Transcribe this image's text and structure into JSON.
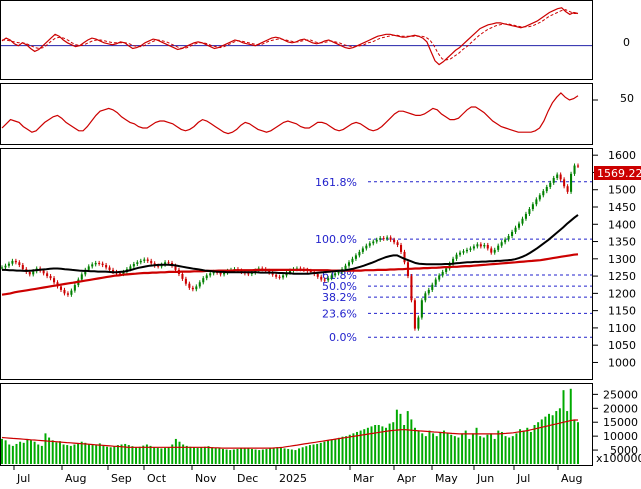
{
  "colors": {
    "panel_border": "#000000",
    "grid": "#c0c0c0",
    "up_candle": "#008000",
    "down_candle": "#cc0000",
    "ma_long": "#cc0000",
    "ma_mid": "#000000",
    "fib": "#2222cc",
    "price_badge_bg": "#cc0000",
    "price_badge_text": "#ffffff",
    "volume_bar": "#00aa00",
    "volume_ma": "#cc0000",
    "oscillator": "#cc0000"
  },
  "chart_data": {
    "type": "candlestick",
    "months": [
      "Jul",
      "Aug",
      "Sep",
      "Oct",
      "Nov",
      "Dec",
      "2025",
      "Mar",
      "Apr",
      "May",
      "Jun",
      "Jul",
      "Aug"
    ],
    "price_axis": {
      "ticks": [
        1000,
        1050,
        1100,
        1150,
        1200,
        1250,
        1300,
        1350,
        1400,
        1450,
        1500,
        1550,
        1600
      ],
      "tick_labels": [
        "1000",
        "1050",
        "1100",
        "1150",
        "1200",
        "1250",
        "1300",
        "1350",
        "1400",
        "1450",
        "1500",
        "1550",
        "1600"
      ],
      "ylim": [
        955,
        1615
      ]
    },
    "last_price_label": "1569.22",
    "close": [
      1275,
      1280,
      1286,
      1294,
      1290,
      1282,
      1270,
      1262,
      1255,
      1264,
      1272,
      1266,
      1258,
      1250,
      1244,
      1232,
      1220,
      1210,
      1200,
      1196,
      1208,
      1224,
      1240,
      1255,
      1268,
      1278,
      1284,
      1288,
      1286,
      1282,
      1275,
      1268,
      1262,
      1258,
      1256,
      1262,
      1270,
      1278,
      1285,
      1290,
      1294,
      1298,
      1294,
      1287,
      1280,
      1278,
      1283,
      1290,
      1288,
      1280,
      1268,
      1256,
      1242,
      1228,
      1216,
      1212,
      1220,
      1232,
      1244,
      1252,
      1258,
      1262,
      1260,
      1255,
      1260,
      1265,
      1268,
      1270,
      1266,
      1262,
      1258,
      1256,
      1260,
      1266,
      1272,
      1270,
      1265,
      1260,
      1254,
      1248,
      1246,
      1252,
      1260,
      1266,
      1270,
      1272,
      1270,
      1268,
      1265,
      1262,
      1256,
      1248,
      1240,
      1238,
      1244,
      1252,
      1258,
      1262,
      1270,
      1280,
      1290,
      1300,
      1310,
      1320,
      1330,
      1338,
      1345,
      1350,
      1355,
      1360,
      1358,
      1362,
      1355,
      1348,
      1340,
      1320,
      1290,
      1250,
      1180,
      1098,
      1130,
      1180,
      1200,
      1210,
      1225,
      1240,
      1252,
      1262,
      1272,
      1286,
      1300,
      1312,
      1318,
      1322,
      1326,
      1330,
      1336,
      1342,
      1336,
      1340,
      1330,
      1318,
      1326,
      1338,
      1348,
      1356,
      1366,
      1378,
      1390,
      1402,
      1416,
      1430,
      1444,
      1458,
      1472,
      1484,
      1496,
      1508,
      1520,
      1534,
      1544,
      1530,
      1510,
      1494,
      1546,
      1570,
      1569
    ],
    "ma_mid": [
      1268,
      1268,
      1267,
      1267,
      1266,
      1266,
      1265,
      1265,
      1266,
      1267,
      1268,
      1269,
      1270,
      1271,
      1272,
      1272,
      1271,
      1270,
      1269,
      1268,
      1267,
      1266,
      1265,
      1265,
      1264,
      1264,
      1263,
      1263,
      1263,
      1262,
      1261,
      1261,
      1262,
      1263,
      1265,
      1268,
      1271,
      1274,
      1276,
      1278,
      1280,
      1281,
      1282,
      1283,
      1283,
      1283,
      1282,
      1281,
      1279,
      1277,
      1275,
      1273,
      1271,
      1270,
      1268,
      1266,
      1265,
      1264,
      1263,
      1262,
      1262,
      1261,
      1261,
      1261,
      1261,
      1261,
      1261,
      1261,
      1261,
      1261,
      1260,
      1260,
      1260,
      1260,
      1260,
      1259,
      1259,
      1258,
      1258,
      1257,
      1257,
      1257,
      1257,
      1257,
      1258,
      1259,
      1260,
      1261,
      1262,
      1263,
      1264,
      1265,
      1266,
      1267,
      1269,
      1271,
      1274,
      1277,
      1280,
      1284,
      1288,
      1292,
      1297,
      1301,
      1305,
      1308,
      1310,
      1310,
      1305,
      1300,
      1296,
      1292,
      1288,
      1286,
      1285,
      1284,
      1284,
      1284,
      1284,
      1284,
      1285,
      1285,
      1286,
      1287,
      1288,
      1289,
      1290,
      1290,
      1291,
      1291,
      1292,
      1292,
      1293,
      1293,
      1294,
      1294,
      1295,
      1296,
      1297,
      1299,
      1302,
      1306,
      1311,
      1317,
      1324,
      1331,
      1339,
      1347,
      1355,
      1364,
      1373,
      1382,
      1391,
      1401,
      1410,
      1419,
      1427
    ],
    "ma_long": [
      1196,
      1198,
      1200,
      1203,
      1205,
      1207,
      1209,
      1211,
      1213,
      1215,
      1217,
      1219,
      1221,
      1223,
      1225,
      1227,
      1229,
      1231,
      1233,
      1235,
      1237,
      1239,
      1241,
      1243,
      1245,
      1247,
      1249,
      1251,
      1252,
      1254,
      1255,
      1256,
      1257,
      1258,
      1259,
      1259,
      1260,
      1260,
      1261,
      1261,
      1262,
      1262,
      1262,
      1263,
      1263,
      1263,
      1264,
      1264,
      1264,
      1265,
      1265,
      1265,
      1266,
      1266,
      1266,
      1266,
      1267,
      1267,
      1267,
      1267,
      1267,
      1268,
      1268,
      1268,
      1268,
      1268,
      1268,
      1268,
      1268,
      1268,
      1268,
      1268,
      1268,
      1268,
      1267,
      1267,
      1267,
      1267,
      1267,
      1266,
      1266,
      1266,
      1266,
      1266,
      1266,
      1266,
      1266,
      1267,
      1267,
      1267,
      1268,
      1268,
      1268,
      1269,
      1269,
      1270,
      1270,
      1271,
      1271,
      1272,
      1272,
      1273,
      1273,
      1274,
      1274,
      1275,
      1276,
      1276,
      1277,
      1277,
      1278,
      1279,
      1279,
      1280,
      1281,
      1282,
      1283,
      1284,
      1285,
      1286,
      1287,
      1288,
      1289,
      1290,
      1291,
      1292,
      1293,
      1294,
      1295,
      1296,
      1298,
      1300,
      1302,
      1304,
      1306,
      1308,
      1310,
      1312,
      1313
    ],
    "fibonacci": {
      "levels": [
        {
          "label": "161.8%",
          "value": 1523
        },
        {
          "label": "100.0%",
          "value": 1357
        },
        {
          "label": "61.8%",
          "value": 1253
        },
        {
          "label": "50.0%",
          "value": 1221
        },
        {
          "label": "38.2%",
          "value": 1189
        },
        {
          "label": "23.6%",
          "value": 1142
        },
        {
          "label": "0.0%",
          "value": 1073
        }
      ]
    },
    "volume": {
      "unit_label": "x100000",
      "ticks": [
        5000,
        10000,
        15000,
        20000,
        25000
      ],
      "tick_labels": [
        "5000",
        "10000",
        "15000",
        "20000",
        "25000"
      ],
      "ylim": [
        0,
        28000
      ],
      "bars": [
        9000,
        8500,
        7000,
        6500,
        7200,
        8000,
        7600,
        9000,
        8800,
        8000,
        7000,
        6500,
        11000,
        9500,
        8500,
        7800,
        8200,
        7000,
        6800,
        6500,
        7000,
        7500,
        8000,
        7600,
        7200,
        6800,
        7000,
        7400,
        6600,
        6200,
        6000,
        6400,
        6800,
        7000,
        7200,
        6800,
        6400,
        6000,
        6200,
        6600,
        7000,
        6500,
        6000,
        5800,
        5600,
        5800,
        6000,
        7000,
        9000,
        8000,
        7000,
        6500,
        6200,
        6000,
        5800,
        6000,
        6200,
        6400,
        6000,
        5800,
        5600,
        5400,
        5200,
        5000,
        5200,
        5400,
        5600,
        5800,
        5600,
        5400,
        5200,
        5000,
        5200,
        5400,
        5600,
        5800,
        6000,
        5800,
        5600,
        5400,
        5200,
        5000,
        5600,
        6000,
        6400,
        6800,
        7000,
        7200,
        7600,
        8000,
        8400,
        8800,
        9000,
        9400,
        9800,
        10000,
        10500,
        11000,
        11500,
        12000,
        12500,
        13000,
        13500,
        14000,
        14000,
        13500,
        13000,
        14500,
        15000,
        19500,
        18000,
        14000,
        19000,
        16000,
        13000,
        12000,
        11000,
        10000,
        12000,
        11000,
        10000,
        11500,
        12000,
        11000,
        10500,
        10000,
        9500,
        11000,
        12000,
        9000,
        11000,
        13000,
        10000,
        9500,
        10500,
        11000,
        9000,
        12000,
        11500,
        10000,
        9500,
        10000,
        11000,
        12500,
        12000,
        13000,
        11500,
        14000,
        15000,
        16000,
        17000,
        18000,
        17500,
        19000,
        20000,
        26500,
        19000,
        27000,
        16000,
        15000
      ],
      "ma": [
        9500,
        9400,
        9300,
        9200,
        9100,
        9000,
        8900,
        8800,
        8700,
        8600,
        8500,
        8400,
        8300,
        8200,
        8100,
        8000,
        7900,
        7800,
        7700,
        7600,
        7500,
        7400,
        7300,
        7200,
        7100,
        7000,
        6900,
        6800,
        6700,
        6600,
        6500,
        6400,
        6300,
        6200,
        6100,
        6000,
        6000,
        6000,
        6000,
        6000,
        6000,
        6000,
        6000,
        6000,
        6000,
        6000,
        6000,
        6000,
        6000,
        6000,
        6000,
        6000,
        6000,
        6000,
        6000,
        6000,
        6000,
        6000,
        5900,
        5800,
        5800,
        5700,
        5700,
        5700,
        5700,
        5700,
        5700,
        5700,
        5700,
        5700,
        5700,
        5700,
        5700,
        5700,
        5700,
        5700,
        5800,
        5900,
        6000,
        6200,
        6400,
        6600,
        6800,
        7000,
        7200,
        7400,
        7600,
        7800,
        8000,
        8200,
        8400,
        8600,
        8800,
        9000,
        9200,
        9400,
        9600,
        9800,
        10000,
        10200,
        10400,
        10600,
        10800,
        11000,
        11200,
        11400,
        11600,
        11800,
        12000,
        12100,
        12200,
        12300,
        12300,
        12200,
        12100,
        12000,
        11900,
        11800,
        11700,
        11600,
        11500,
        11400,
        11300,
        11200,
        11100,
        11000,
        10900,
        10800,
        10800,
        10800,
        10800,
        10800,
        10800,
        10800,
        10800,
        10800,
        10800,
        10800,
        10800,
        10900,
        11000,
        11100,
        11200,
        11400,
        11600,
        11800,
        12000,
        12300,
        12600,
        12900,
        13200,
        13500,
        13800,
        14100,
        14400,
        14700,
        15000,
        15300,
        15600,
        15800,
        15800
      ]
    },
    "oscillator_macd": {
      "zero_label": "0",
      "series": [
        0.5,
        0.8,
        0.6,
        0.2,
        0.0,
        0.3,
        0.1,
        -0.3,
        -0.6,
        -0.4,
        0.0,
        0.4,
        0.8,
        1.2,
        1.0,
        0.6,
        0.3,
        0.1,
        -0.1,
        0.0,
        0.3,
        0.6,
        0.8,
        0.7,
        0.5,
        0.3,
        0.2,
        0.1,
        0.2,
        0.4,
        0.3,
        0.0,
        -0.3,
        -0.2,
        0.0,
        0.3,
        0.5,
        0.7,
        0.6,
        0.4,
        0.2,
        0.0,
        -0.2,
        -0.4,
        -0.3,
        -0.1,
        0.1,
        0.3,
        0.4,
        0.3,
        0.1,
        -0.1,
        -0.3,
        -0.2,
        0.0,
        0.2,
        0.4,
        0.6,
        0.5,
        0.3,
        0.2,
        0.1,
        0.0,
        0.2,
        0.4,
        0.6,
        0.8,
        0.9,
        0.8,
        0.6,
        0.4,
        0.3,
        0.4,
        0.6,
        0.7,
        0.5,
        0.3,
        0.2,
        0.3,
        0.5,
        0.6,
        0.4,
        0.2,
        0.0,
        -0.2,
        -0.3,
        -0.2,
        0.0,
        0.2,
        0.4,
        0.6,
        0.8,
        1.0,
        1.1,
        1.2,
        1.2,
        1.1,
        1.0,
        0.9,
        0.9,
        1.0,
        1.1,
        1.0,
        0.8,
        0.4,
        -0.6,
        -1.6,
        -2.0,
        -1.7,
        -1.3,
        -0.9,
        -0.5,
        -0.2,
        0.2,
        0.6,
        1.0,
        1.4,
        1.8,
        2.0,
        2.2,
        2.3,
        2.4,
        2.4,
        2.3,
        2.2,
        2.1,
        2.0,
        1.9,
        2.0,
        2.2,
        2.4,
        2.6,
        2.9,
        3.2,
        3.5,
        3.7,
        3.9,
        4.0,
        3.6,
        3.3,
        3.5,
        3.4
      ],
      "signal": [
        0.6,
        0.6,
        0.5,
        0.4,
        0.3,
        0.3,
        0.2,
        0.0,
        -0.2,
        -0.3,
        -0.2,
        0.1,
        0.5,
        0.8,
        0.9,
        0.8,
        0.6,
        0.3,
        0.1,
        0.0,
        0.1,
        0.3,
        0.5,
        0.6,
        0.6,
        0.5,
        0.4,
        0.3,
        0.3,
        0.3,
        0.3,
        0.2,
        0.0,
        -0.1,
        -0.1,
        0.1,
        0.3,
        0.5,
        0.6,
        0.5,
        0.4,
        0.2,
        0.0,
        -0.2,
        -0.3,
        -0.2,
        0.0,
        0.2,
        0.3,
        0.3,
        0.2,
        0.0,
        -0.1,
        -0.2,
        -0.1,
        0.1,
        0.3,
        0.5,
        0.5,
        0.4,
        0.3,
        0.2,
        0.1,
        0.1,
        0.3,
        0.5,
        0.6,
        0.7,
        0.7,
        0.6,
        0.5,
        0.4,
        0.4,
        0.5,
        0.6,
        0.6,
        0.4,
        0.3,
        0.3,
        0.4,
        0.5,
        0.4,
        0.3,
        0.1,
        0.0,
        -0.1,
        -0.1,
        0.0,
        0.1,
        0.3,
        0.4,
        0.6,
        0.8,
        0.9,
        1.0,
        1.1,
        1.1,
        1.0,
        1.0,
        1.0,
        1.0,
        1.0,
        1.0,
        0.9,
        0.6,
        0.0,
        -0.8,
        -1.4,
        -1.5,
        -1.4,
        -1.1,
        -0.8,
        -0.4,
        -0.1,
        0.3,
        0.7,
        1.1,
        1.4,
        1.7,
        1.9,
        2.1,
        2.2,
        2.3,
        2.3,
        2.2,
        2.1,
        2.0,
        2.0,
        2.0,
        2.1,
        2.3,
        2.5,
        2.8,
        3.1,
        3.3,
        3.5,
        3.7,
        3.8,
        3.6,
        3.4,
        3.4
      ]
    },
    "oscillator_rsi": {
      "tick_label": "50",
      "series": [
        30,
        33,
        36,
        35,
        34,
        31,
        29,
        27,
        28,
        31,
        34,
        36,
        38,
        39,
        37,
        34,
        32,
        30,
        28,
        28,
        31,
        35,
        39,
        42,
        43,
        44,
        43,
        41,
        38,
        36,
        34,
        33,
        31,
        30,
        30,
        32,
        34,
        35,
        35,
        34,
        33,
        31,
        29,
        28,
        29,
        31,
        34,
        36,
        35,
        33,
        31,
        29,
        27,
        26,
        27,
        29,
        32,
        34,
        33,
        31,
        29,
        28,
        27,
        28,
        30,
        32,
        34,
        35,
        34,
        33,
        31,
        30,
        30,
        32,
        34,
        34,
        33,
        31,
        29,
        28,
        29,
        31,
        33,
        34,
        33,
        31,
        29,
        28,
        29,
        31,
        34,
        37,
        40,
        42,
        42,
        41,
        40,
        39,
        39,
        40,
        42,
        44,
        43,
        40,
        38,
        36,
        36,
        37,
        40,
        43,
        45,
        45,
        43,
        41,
        38,
        35,
        33,
        31,
        30,
        29,
        28,
        27,
        27,
        27,
        27,
        28,
        30,
        35,
        42,
        48,
        52,
        55,
        52,
        50,
        51,
        53
      ]
    }
  }
}
